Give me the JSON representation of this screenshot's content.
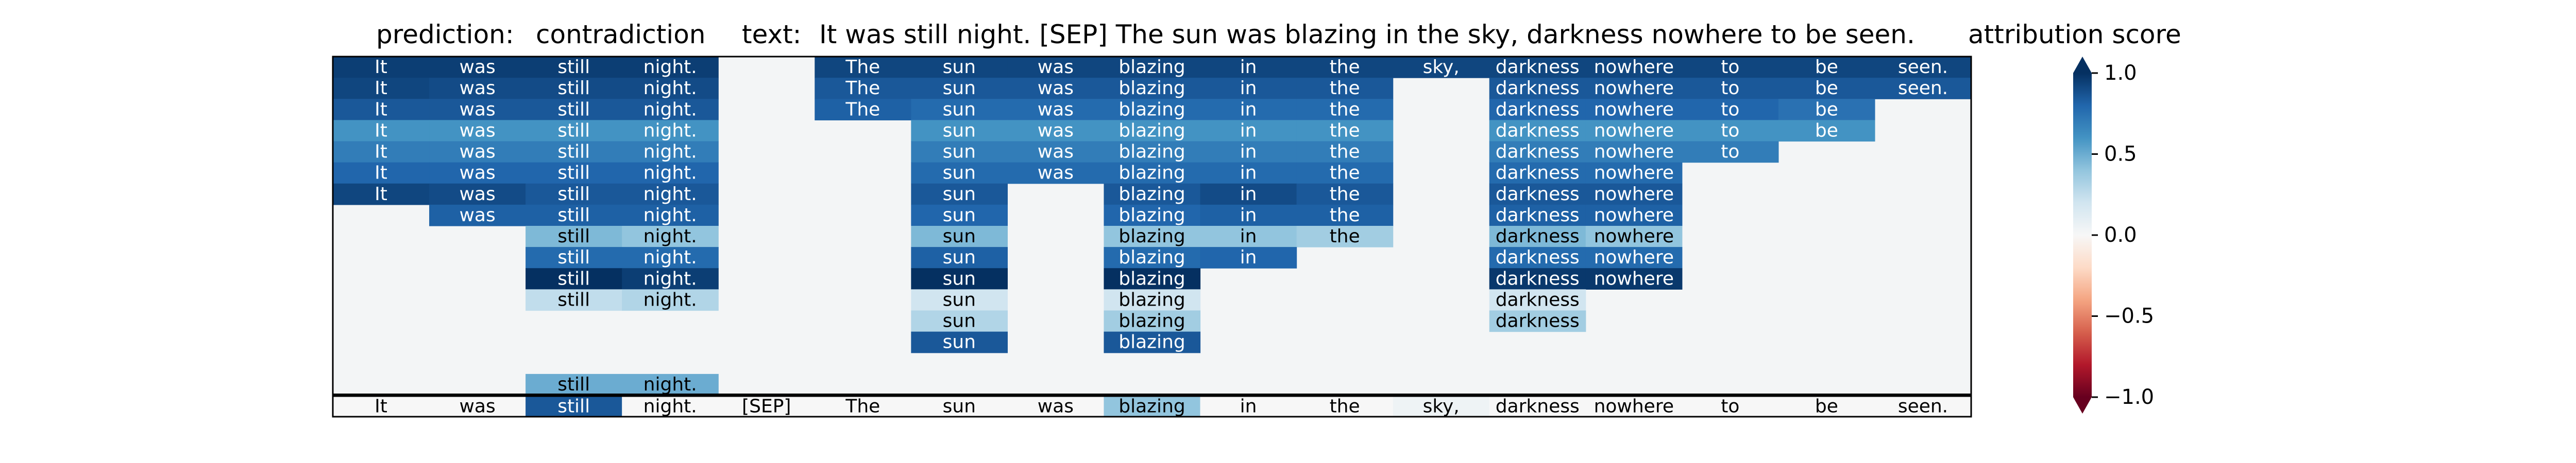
{
  "header": {
    "prediction_label": "prediction:",
    "prediction_value": "contradiction",
    "text_label": "text:",
    "text_value": "It was still night. [SEP] The sun was blazing in the sky, darkness nowhere to be seen.",
    "colorbar_title": "attribution score"
  },
  "chart_data": {
    "type": "heatmap",
    "tokens": [
      "It",
      "was",
      "still",
      "night.",
      "[SEP]",
      "The",
      "sun",
      "was",
      "blazing",
      "in",
      "the",
      "sky,",
      "darkness",
      "nowhere",
      "to",
      "be",
      "seen."
    ],
    "background_value": 0.02,
    "rows": [
      [
        0.95,
        0.95,
        0.95,
        0.95,
        null,
        0.92,
        0.92,
        0.92,
        0.92,
        0.92,
        0.92,
        0.92,
        0.92,
        0.92,
        0.92,
        0.92,
        0.92
      ],
      [
        0.92,
        0.9,
        0.9,
        0.9,
        null,
        0.85,
        0.85,
        0.85,
        0.85,
        0.85,
        0.85,
        null,
        0.85,
        0.85,
        0.85,
        0.85,
        0.85
      ],
      [
        0.85,
        0.85,
        0.85,
        0.85,
        null,
        0.82,
        0.78,
        0.78,
        0.78,
        0.78,
        0.78,
        null,
        0.8,
        0.8,
        0.8,
        0.75,
        null
      ],
      [
        0.6,
        0.6,
        0.6,
        0.6,
        null,
        null,
        0.6,
        0.6,
        0.6,
        0.6,
        0.6,
        null,
        0.6,
        0.6,
        0.6,
        0.6,
        null
      ],
      [
        0.7,
        0.7,
        0.7,
        0.7,
        null,
        null,
        0.7,
        0.7,
        0.7,
        0.7,
        0.7,
        null,
        0.7,
        0.7,
        0.7,
        null,
        null
      ],
      [
        0.8,
        0.8,
        0.8,
        0.8,
        null,
        null,
        0.78,
        0.78,
        0.78,
        0.78,
        0.78,
        null,
        0.78,
        0.78,
        null,
        null,
        null
      ],
      [
        0.92,
        0.9,
        0.85,
        0.85,
        null,
        null,
        0.85,
        null,
        0.85,
        0.9,
        0.85,
        null,
        0.85,
        0.85,
        null,
        null,
        null
      ],
      [
        null,
        0.82,
        0.82,
        0.82,
        null,
        null,
        0.8,
        null,
        0.8,
        0.82,
        0.82,
        null,
        0.82,
        0.82,
        null,
        null,
        null
      ],
      [
        null,
        null,
        0.45,
        0.4,
        null,
        null,
        0.45,
        null,
        0.4,
        0.4,
        0.35,
        null,
        0.45,
        0.4,
        null,
        null,
        null
      ],
      [
        null,
        null,
        0.78,
        0.78,
        null,
        null,
        0.82,
        null,
        0.78,
        0.8,
        null,
        null,
        0.78,
        0.78,
        null,
        null,
        null
      ],
      [
        null,
        null,
        1.0,
        0.95,
        null,
        null,
        1.0,
        null,
        1.0,
        null,
        null,
        null,
        0.97,
        0.97,
        null,
        null,
        null
      ],
      [
        null,
        null,
        0.25,
        0.3,
        null,
        null,
        0.2,
        null,
        0.2,
        null,
        null,
        null,
        0.2,
        null,
        null,
        null,
        null
      ],
      [
        null,
        null,
        null,
        null,
        null,
        null,
        0.3,
        null,
        0.35,
        null,
        null,
        null,
        0.35,
        null,
        null,
        null,
        null
      ],
      [
        null,
        null,
        null,
        null,
        null,
        null,
        0.85,
        null,
        0.85,
        null,
        null,
        null,
        null,
        null,
        null,
        null,
        null
      ],
      [
        null,
        null,
        null,
        null,
        null,
        null,
        null,
        null,
        null,
        null,
        null,
        null,
        null,
        null,
        null,
        null,
        null
      ],
      [
        null,
        null,
        0.5,
        0.5,
        null,
        null,
        null,
        null,
        null,
        null,
        null,
        null,
        null,
        null,
        null,
        null,
        null
      ]
    ],
    "summary_row": [
      0.0,
      0.0,
      0.85,
      0.0,
      0.0,
      0.0,
      0.0,
      0.0,
      0.4,
      0.0,
      0.0,
      0.05,
      0.0,
      0.0,
      0.0,
      0.0,
      0.0
    ],
    "colorbar": {
      "min": -1.0,
      "max": 1.0,
      "ticks": [
        1.0,
        0.5,
        0.0,
        -0.5,
        -1.0
      ],
      "tick_labels": [
        "1.0",
        "0.5",
        "0.0",
        "−0.5",
        "−1.0"
      ],
      "colormap": "RdBu"
    }
  }
}
